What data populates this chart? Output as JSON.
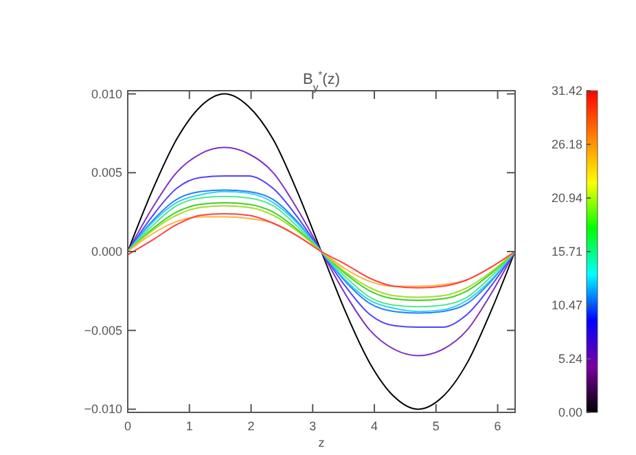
{
  "chart_data": {
    "type": "line",
    "title": "B$_{y}$$^{*}$(z)",
    "xlabel": "z",
    "x": [
      0,
      0.39,
      0.79,
      1.18,
      1.57,
      1.96,
      2.36,
      2.75,
      3.14,
      3.53,
      3.93,
      4.32,
      4.71,
      5.11,
      5.5,
      5.89,
      6.28
    ],
    "series": [
      {
        "color": "#000000",
        "values": [
          0,
          0.0038,
          0.0071,
          0.0092,
          0.01,
          0.0092,
          0.0071,
          0.0038,
          0,
          -0.0038,
          -0.0071,
          -0.0092,
          -0.01,
          -0.0092,
          -0.0071,
          -0.0038,
          0
        ]
      },
      {
        "color": "#8030c0",
        "values": [
          0,
          0.0027,
          0.005,
          0.0062,
          0.0066,
          0.0062,
          0.005,
          0.0027,
          0,
          -0.0027,
          -0.005,
          -0.0062,
          -0.0066,
          -0.0062,
          -0.005,
          -0.0027,
          0
        ]
      },
      {
        "color": "#5040ff",
        "values": [
          0,
          0.0022,
          0.004,
          0.0047,
          0.0048,
          0.0048,
          0.004,
          0.0022,
          0,
          -0.0022,
          -0.004,
          -0.0047,
          -0.0048,
          -0.0048,
          -0.004,
          -0.0022,
          0
        ]
      },
      {
        "color": "#2080ff",
        "values": [
          0,
          0.0019,
          0.0033,
          0.0038,
          0.0039,
          0.0038,
          0.0033,
          0.0019,
          0,
          -0.0019,
          -0.0033,
          -0.0038,
          -0.0039,
          -0.0038,
          -0.0033,
          -0.0019,
          0
        ]
      },
      {
        "color": "#30d0f0",
        "values": [
          0,
          0.0018,
          0.0031,
          0.0036,
          0.0038,
          0.0037,
          0.0031,
          0.0018,
          0,
          -0.0018,
          -0.0031,
          -0.0036,
          -0.0038,
          -0.0037,
          -0.0031,
          -0.0018,
          0
        ]
      },
      {
        "color": "#50e890",
        "values": [
          0,
          0.0016,
          0.0029,
          0.0034,
          0.0035,
          0.0034,
          0.0029,
          0.0016,
          0,
          -0.0016,
          -0.0029,
          -0.0034,
          -0.0035,
          -0.0034,
          -0.0029,
          -0.0016,
          0
        ]
      },
      {
        "color": "#40d020",
        "values": [
          0,
          0.0014,
          0.0025,
          0.003,
          0.0031,
          0.003,
          0.0025,
          0.0014,
          0,
          -0.0014,
          -0.0025,
          -0.003,
          -0.0031,
          -0.003,
          -0.0025,
          -0.0014,
          0
        ]
      },
      {
        "color": "#a0e030",
        "values": [
          0,
          0.0013,
          0.0023,
          0.0028,
          0.0029,
          0.0028,
          0.0023,
          0.0013,
          0,
          -0.0013,
          -0.0023,
          -0.0028,
          -0.0029,
          -0.0028,
          -0.0023,
          -0.0013,
          0
        ]
      },
      {
        "color": "#ffb040",
        "values": [
          0,
          0.0011,
          0.0019,
          0.0022,
          0.0022,
          0.0021,
          0.0018,
          0.001,
          0,
          -0.0011,
          -0.0019,
          -0.0022,
          -0.0022,
          -0.0021,
          -0.0018,
          -0.001,
          0
        ]
      },
      {
        "color": "#ff4040",
        "values": [
          -0.0002,
          0.0007,
          0.0017,
          0.0023,
          0.0024,
          0.0023,
          0.0018,
          0.001,
          0,
          -0.0008,
          -0.0017,
          -0.0022,
          -0.0023,
          -0.0022,
          -0.0018,
          -0.001,
          0
        ]
      }
    ],
    "xlim": [
      0,
      6.2832
    ],
    "xticks": [
      0,
      1,
      2,
      3,
      4,
      5,
      6
    ],
    "ylim": [
      -0.0102,
      0.0102
    ],
    "yticks": [
      {
        "value": -0.01,
        "label": "−0.010"
      },
      {
        "value": -0.005,
        "label": "−0.005"
      },
      {
        "value": 0,
        "label": "0.000"
      },
      {
        "value": 0.005,
        "label": "0.005"
      },
      {
        "value": 0.01,
        "label": "0.010"
      }
    ],
    "clim": [
      0,
      31.42
    ],
    "cticks": [
      {
        "value": 0,
        "label": "0.00"
      },
      5.24,
      10.47,
      15.71,
      20.94,
      26.18,
      31.42
    ],
    "grid": false,
    "marker": "none",
    "line_style": "solid"
  }
}
